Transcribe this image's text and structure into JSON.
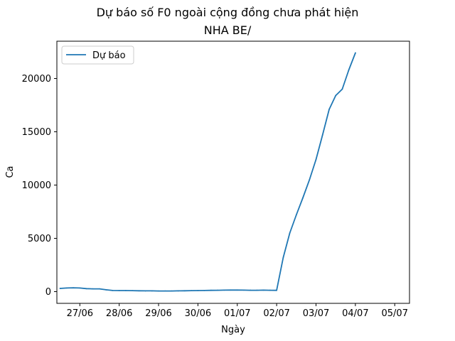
{
  "chart_data": {
    "type": "line",
    "title_lines": [
      "Dự báo số F0 ngoài cộng đồng chưa phát hiện",
      "NHA BE/"
    ],
    "xlabel": "Ngày",
    "ylabel": "Ca",
    "x_ticks": [
      "27/06",
      "28/06",
      "29/06",
      "30/06",
      "01/07",
      "02/07",
      "03/07",
      "04/07",
      "05/07"
    ],
    "y_ticks": [
      0,
      5000,
      10000,
      15000,
      20000
    ],
    "xlim": [
      "26/06 10:00",
      "05/07 09:00"
    ],
    "ylim": [
      -1100,
      23500
    ],
    "grid": false,
    "legend": {
      "position": "top-left"
    },
    "series": [
      {
        "name": "Dự báo",
        "color": "#1f77b4",
        "points": [
          [
            "26/06 12:00",
            300
          ],
          [
            "26/06 16:00",
            340
          ],
          [
            "26/06 20:00",
            360
          ],
          [
            "27/06 00:00",
            340
          ],
          [
            "27/06 04:00",
            280
          ],
          [
            "27/06 08:00",
            260
          ],
          [
            "27/06 12:00",
            260
          ],
          [
            "27/06 16:00",
            170
          ],
          [
            "27/06 20:00",
            110
          ],
          [
            "28/06 00:00",
            100
          ],
          [
            "28/06 04:00",
            100
          ],
          [
            "28/06 08:00",
            90
          ],
          [
            "28/06 12:00",
            80
          ],
          [
            "28/06 16:00",
            70
          ],
          [
            "28/06 20:00",
            70
          ],
          [
            "29/06 00:00",
            60
          ],
          [
            "29/06 04:00",
            60
          ],
          [
            "29/06 08:00",
            60
          ],
          [
            "29/06 12:00",
            70
          ],
          [
            "29/06 16:00",
            80
          ],
          [
            "29/06 20:00",
            90
          ],
          [
            "30/06 00:00",
            100
          ],
          [
            "30/06 04:00",
            110
          ],
          [
            "30/06 08:00",
            120
          ],
          [
            "30/06 12:00",
            130
          ],
          [
            "30/06 16:00",
            140
          ],
          [
            "30/06 20:00",
            150
          ],
          [
            "01/07 00:00",
            150
          ],
          [
            "01/07 04:00",
            140
          ],
          [
            "01/07 08:00",
            130
          ],
          [
            "01/07 12:00",
            130
          ],
          [
            "01/07 16:00",
            140
          ],
          [
            "01/07 20:00",
            130
          ],
          [
            "02/07 00:00",
            120
          ],
          [
            "02/07 04:00",
            3200
          ],
          [
            "02/07 08:00",
            5500
          ],
          [
            "02/07 12:00",
            7200
          ],
          [
            "02/07 16:00",
            8800
          ],
          [
            "02/07 20:00",
            10500
          ],
          [
            "03/07 00:00",
            12400
          ],
          [
            "03/07 04:00",
            14700
          ],
          [
            "03/07 08:00",
            17100
          ],
          [
            "03/07 12:00",
            18400
          ],
          [
            "03/07 16:00",
            19000
          ],
          [
            "03/07 20:00",
            20800
          ],
          [
            "04/07 00:00",
            22400
          ]
        ]
      }
    ]
  }
}
